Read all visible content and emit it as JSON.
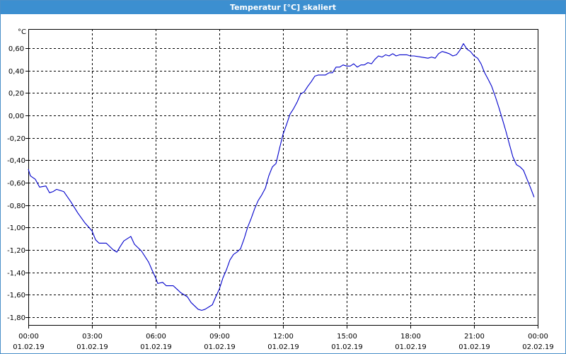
{
  "window": {
    "title": "Temperatur [°C] skaliert"
  },
  "colors": {
    "line": "#0000cc",
    "grid": "#000000",
    "titlebar": "#3c8fd0"
  },
  "chart_data": {
    "type": "line",
    "title": "Temperatur [°C] skaliert",
    "ylabel": "°C",
    "xlabel": "",
    "ylim": [
      -1.87,
      0.77
    ],
    "xlim": [
      0,
      24
    ],
    "grid": true,
    "y_ticks": [
      {
        "v": 0.6,
        "label": "0,60"
      },
      {
        "v": 0.4,
        "label": "0,40"
      },
      {
        "v": 0.2,
        "label": "0,20"
      },
      {
        "v": 0.0,
        "label": "0,00"
      },
      {
        "v": -0.2,
        "label": "-0,20"
      },
      {
        "v": -0.4,
        "label": "-0,40"
      },
      {
        "v": -0.6,
        "label": "-0,60"
      },
      {
        "v": -0.8,
        "label": "-0,80"
      },
      {
        "v": -1.0,
        "label": "-1,00"
      },
      {
        "v": -1.2,
        "label": "-1,20"
      },
      {
        "v": -1.4,
        "label": "-1,40"
      },
      {
        "v": -1.6,
        "label": "-1,60"
      },
      {
        "v": -1.8,
        "label": "-1,80"
      }
    ],
    "x_ticks": [
      {
        "h": 0,
        "time": "00:00",
        "date": "01.02.19"
      },
      {
        "h": 3,
        "time": "03:00",
        "date": "01.02.19"
      },
      {
        "h": 6,
        "time": "06:00",
        "date": "01.02.19"
      },
      {
        "h": 9,
        "time": "09:00",
        "date": "01.02.19"
      },
      {
        "h": 12,
        "time": "12:00",
        "date": "01.02.19"
      },
      {
        "h": 15,
        "time": "15:00",
        "date": "01.02.19"
      },
      {
        "h": 18,
        "time": "18:00",
        "date": "01.02.19"
      },
      {
        "h": 21,
        "time": "21:00",
        "date": "01.02.19"
      },
      {
        "h": 24,
        "time": "00:00",
        "date": "02.02.19"
      }
    ],
    "series": [
      {
        "points": [
          [
            0.0,
            -0.48
          ],
          [
            0.1,
            -0.54
          ],
          [
            0.33,
            -0.57
          ],
          [
            0.53,
            -0.64
          ],
          [
            0.83,
            -0.63
          ],
          [
            1.0,
            -0.69
          ],
          [
            1.17,
            -0.68
          ],
          [
            1.33,
            -0.66
          ],
          [
            1.67,
            -0.68
          ],
          [
            2.0,
            -0.77
          ],
          [
            2.33,
            -0.87
          ],
          [
            2.67,
            -0.96
          ],
          [
            3.0,
            -1.03
          ],
          [
            3.17,
            -1.11
          ],
          [
            3.33,
            -1.14
          ],
          [
            3.67,
            -1.14
          ],
          [
            4.0,
            -1.2
          ],
          [
            4.17,
            -1.22
          ],
          [
            4.33,
            -1.17
          ],
          [
            4.5,
            -1.12
          ],
          [
            4.83,
            -1.08
          ],
          [
            5.0,
            -1.15
          ],
          [
            5.33,
            -1.21
          ],
          [
            5.67,
            -1.31
          ],
          [
            5.83,
            -1.38
          ],
          [
            6.0,
            -1.45
          ],
          [
            6.1,
            -1.5
          ],
          [
            6.33,
            -1.49
          ],
          [
            6.5,
            -1.52
          ],
          [
            6.83,
            -1.52
          ],
          [
            7.0,
            -1.55
          ],
          [
            7.17,
            -1.58
          ],
          [
            7.5,
            -1.62
          ],
          [
            7.67,
            -1.67
          ],
          [
            8.0,
            -1.73
          ],
          [
            8.17,
            -1.74
          ],
          [
            8.33,
            -1.73
          ],
          [
            8.67,
            -1.69
          ],
          [
            8.83,
            -1.62
          ],
          [
            9.0,
            -1.55
          ],
          [
            9.17,
            -1.45
          ],
          [
            9.33,
            -1.38
          ],
          [
            9.5,
            -1.29
          ],
          [
            9.67,
            -1.24
          ],
          [
            9.83,
            -1.22
          ],
          [
            10.0,
            -1.19
          ],
          [
            10.17,
            -1.1
          ],
          [
            10.33,
            -1.0
          ],
          [
            10.5,
            -0.92
          ],
          [
            10.67,
            -0.83
          ],
          [
            10.83,
            -0.76
          ],
          [
            11.0,
            -0.71
          ],
          [
            11.17,
            -0.65
          ],
          [
            11.33,
            -0.54
          ],
          [
            11.5,
            -0.46
          ],
          [
            11.67,
            -0.43
          ],
          [
            11.83,
            -0.3
          ],
          [
            12.0,
            -0.17
          ],
          [
            12.17,
            -0.08
          ],
          [
            12.33,
            0.01
          ],
          [
            12.5,
            0.06
          ],
          [
            12.67,
            0.12
          ],
          [
            12.83,
            0.19
          ],
          [
            13.0,
            0.21
          ],
          [
            13.17,
            0.26
          ],
          [
            13.33,
            0.3
          ],
          [
            13.5,
            0.35
          ],
          [
            13.67,
            0.36
          ],
          [
            14.0,
            0.36
          ],
          [
            14.17,
            0.38
          ],
          [
            14.33,
            0.38
          ],
          [
            14.5,
            0.43
          ],
          [
            14.67,
            0.43
          ],
          [
            14.83,
            0.45
          ],
          [
            15.0,
            0.44
          ],
          [
            15.17,
            0.44
          ],
          [
            15.33,
            0.46
          ],
          [
            15.5,
            0.43
          ],
          [
            15.67,
            0.45
          ],
          [
            15.83,
            0.45
          ],
          [
            16.0,
            0.47
          ],
          [
            16.17,
            0.46
          ],
          [
            16.33,
            0.5
          ],
          [
            16.5,
            0.53
          ],
          [
            16.67,
            0.52
          ],
          [
            16.83,
            0.54
          ],
          [
            17.0,
            0.53
          ],
          [
            17.17,
            0.55
          ],
          [
            17.33,
            0.53
          ],
          [
            17.5,
            0.54
          ],
          [
            17.83,
            0.54
          ],
          [
            18.0,
            0.53
          ],
          [
            18.17,
            0.53
          ],
          [
            18.5,
            0.52
          ],
          [
            18.83,
            0.51
          ],
          [
            19.0,
            0.52
          ],
          [
            19.17,
            0.51
          ],
          [
            19.33,
            0.55
          ],
          [
            19.5,
            0.57
          ],
          [
            19.67,
            0.56
          ],
          [
            19.83,
            0.55
          ],
          [
            20.0,
            0.53
          ],
          [
            20.17,
            0.54
          ],
          [
            20.33,
            0.58
          ],
          [
            20.5,
            0.64
          ],
          [
            20.67,
            0.59
          ],
          [
            20.83,
            0.57
          ],
          [
            21.0,
            0.53
          ],
          [
            21.17,
            0.51
          ],
          [
            21.33,
            0.46
          ],
          [
            21.5,
            0.38
          ],
          [
            21.67,
            0.32
          ],
          [
            21.83,
            0.26
          ],
          [
            22.0,
            0.17
          ],
          [
            22.17,
            0.07
          ],
          [
            22.33,
            -0.03
          ],
          [
            22.5,
            -0.14
          ],
          [
            22.67,
            -0.26
          ],
          [
            22.83,
            -0.37
          ],
          [
            23.0,
            -0.44
          ],
          [
            23.17,
            -0.46
          ],
          [
            23.33,
            -0.49
          ],
          [
            23.5,
            -0.57
          ],
          [
            23.67,
            -0.65
          ],
          [
            23.83,
            -0.73
          ]
        ]
      }
    ]
  }
}
